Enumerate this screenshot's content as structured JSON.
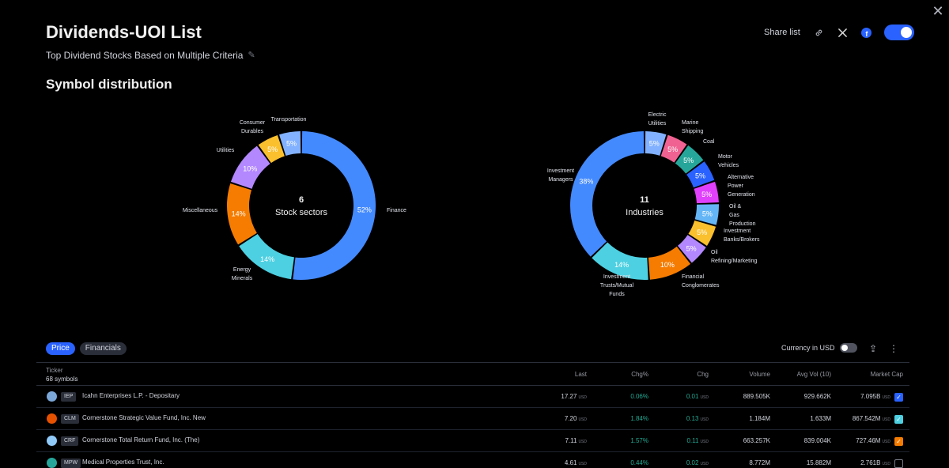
{
  "header": {
    "title": "Dividends-UOI List",
    "subtitle": "Top Dividend Stocks Based on Multiple Criteria",
    "share_label": "Share list"
  },
  "icons": {
    "close": "close-icon",
    "pencil": "pencil-icon",
    "link": "link-icon",
    "x": "x-logo-icon",
    "facebook": "facebook-icon",
    "export": "export-icon",
    "more": "more-vertical-icon"
  },
  "section_title": "Symbol distribution",
  "chart_data": [
    {
      "type": "pie",
      "center_value": "6",
      "center_label": "Stock sectors",
      "categories": [
        "Finance",
        "Energy Minerals",
        "Miscellaneous",
        "Utilities",
        "Consumer Durables",
        "Transportation"
      ],
      "values": [
        52,
        14,
        14,
        10,
        5,
        5
      ],
      "labels": [
        "52%",
        "14%",
        "14%",
        "10%",
        "5%",
        "5%"
      ],
      "colors": [
        "#448aff",
        "#4dd0e1",
        "#f57c00",
        "#b388ff",
        "#fbc02d",
        "#82b1ff"
      ]
    },
    {
      "type": "pie",
      "center_value": "11",
      "center_label": "Industries",
      "categories": [
        "Electric Utilities",
        "Marine Shipping",
        "Coal",
        "Motor Vehicles",
        "Alternative Power Generation",
        "Oil & Gas Production",
        "Investment Banks/Brokers",
        "Oil Refining/Marketing",
        "Financial Conglomerates",
        "Investment Trusts/Mutual Funds",
        "Investment Managers"
      ],
      "values": [
        5,
        5,
        5,
        5,
        5,
        5,
        5,
        5,
        10,
        14,
        38
      ],
      "labels": [
        "5%",
        "5%",
        "5%",
        "5%",
        "5%",
        "5%",
        "5%",
        "5%",
        "10%",
        "14%",
        "38%"
      ],
      "colors": [
        "#82b1ff",
        "#f06292",
        "#26a69a",
        "#2962ff",
        "#e040fb",
        "#64b5f6",
        "#fbc02d",
        "#b388ff",
        "#f57c00",
        "#4dd0e1",
        "#448aff"
      ]
    }
  ],
  "tabs": [
    "Price",
    "Financials"
  ],
  "currency_label": "Currency in USD",
  "table": {
    "ticker_header": "Ticker",
    "count": "68 symbols",
    "columns": [
      "Last",
      "Chg%",
      "Chg",
      "Volume",
      "Avg Vol (10)",
      "Market Cap"
    ],
    "rows": [
      {
        "symbol": "IEP",
        "name": "Icahn Enterprises L.P. - Depositary",
        "last": "17.27",
        "chgp": "0.06%",
        "chg": "0.01",
        "volume": "889.505K",
        "avgvol": "929.662K",
        "mcap": "7.095B",
        "unit": "USD",
        "logo_color": "#7ba7d8",
        "check_color": "#2962ff",
        "checked": "✓"
      },
      {
        "symbol": "CLM",
        "name": "Cornerstone Strategic Value Fund, Inc. New",
        "last": "7.20",
        "chgp": "1.84%",
        "chg": "0.13",
        "volume": "1.184M",
        "avgvol": "1.633M",
        "mcap": "867.542M",
        "unit": "USD",
        "logo_color": "#e65100",
        "check_color": "#4dd0e1",
        "checked": "✓"
      },
      {
        "symbol": "CRF",
        "name": "Cornerstone Total Return Fund, Inc. (The)",
        "last": "7.11",
        "chgp": "1.57%",
        "chg": "0.11",
        "volume": "663.257K",
        "avgvol": "839.004K",
        "mcap": "727.46M",
        "unit": "USD",
        "logo_color": "#90caf9",
        "check_color": "#f57c00",
        "checked": "✓"
      },
      {
        "symbol": "MPW",
        "name": "Medical Properties Trust, Inc.",
        "last": "4.61",
        "chgp": "0.44%",
        "chg": "0.02",
        "volume": "8.772M",
        "avgvol": "15.882M",
        "mcap": "2.761B",
        "unit": "USD",
        "logo_color": "#26a69a",
        "check_color": "transparent",
        "checked": ""
      }
    ]
  }
}
